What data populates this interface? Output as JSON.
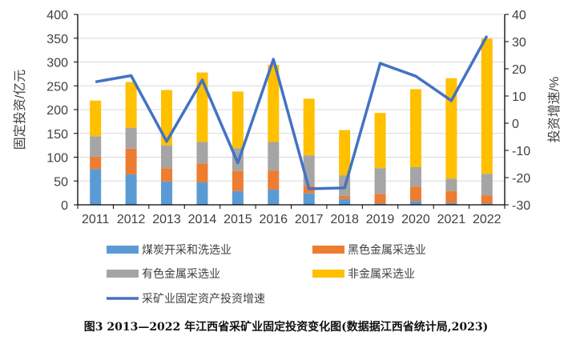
{
  "chart_data": {
    "type": "bar+line",
    "categories": [
      "2011",
      "2012",
      "2013",
      "2014",
      "2015",
      "2016",
      "2017",
      "2018",
      "2019",
      "2020",
      "2021",
      "2022"
    ],
    "stacked": true,
    "series": [
      {
        "name": "煤炭开采和洗选业",
        "type": "bar",
        "color": "#5B9BD5",
        "values": [
          75,
          64,
          49,
          47,
          29,
          32,
          24,
          12,
          3,
          8,
          4,
          3
        ]
      },
      {
        "name": "黑色金属采选业",
        "type": "bar",
        "color": "#ED7D31",
        "values": [
          26,
          54,
          28,
          40,
          42,
          40,
          16,
          7,
          20,
          30,
          25,
          17
        ]
      },
      {
        "name": "有色金属采选业",
        "type": "bar",
        "color": "#A5A5A5",
        "values": [
          43,
          44,
          48,
          45,
          48,
          60,
          64,
          43,
          54,
          41,
          26,
          45
        ]
      },
      {
        "name": "非金属采选业",
        "type": "bar",
        "color": "#FFC000",
        "values": [
          75,
          96,
          116,
          146,
          119,
          162,
          119,
          95,
          116,
          164,
          211,
          284
        ]
      },
      {
        "name": "采矿业固定资产投资增速",
        "type": "line",
        "axis": "right",
        "color": "#4472C4",
        "values": [
          15.2,
          17.5,
          -6.7,
          15.9,
          -14.6,
          23.5,
          -24.1,
          -23.8,
          22.0,
          17.3,
          8.3,
          32.1
        ]
      }
    ],
    "ylabel": "固定投资/亿元",
    "ylim": [
      0,
      400
    ],
    "yticks": [
      "0",
      "50",
      "100",
      "150",
      "200",
      "250",
      "300",
      "350",
      "400"
    ],
    "y2label": "投资增速/%",
    "y2lim": [
      -30,
      40
    ],
    "y2ticks": [
      "-30",
      "-20",
      "-10",
      "0",
      "10",
      "20",
      "30",
      "40"
    ],
    "grid": true,
    "legend": "bottom"
  },
  "caption": "图3   2013—2022 年江西省采矿业固定投资变化图(数据据江西省统计局,2023)"
}
